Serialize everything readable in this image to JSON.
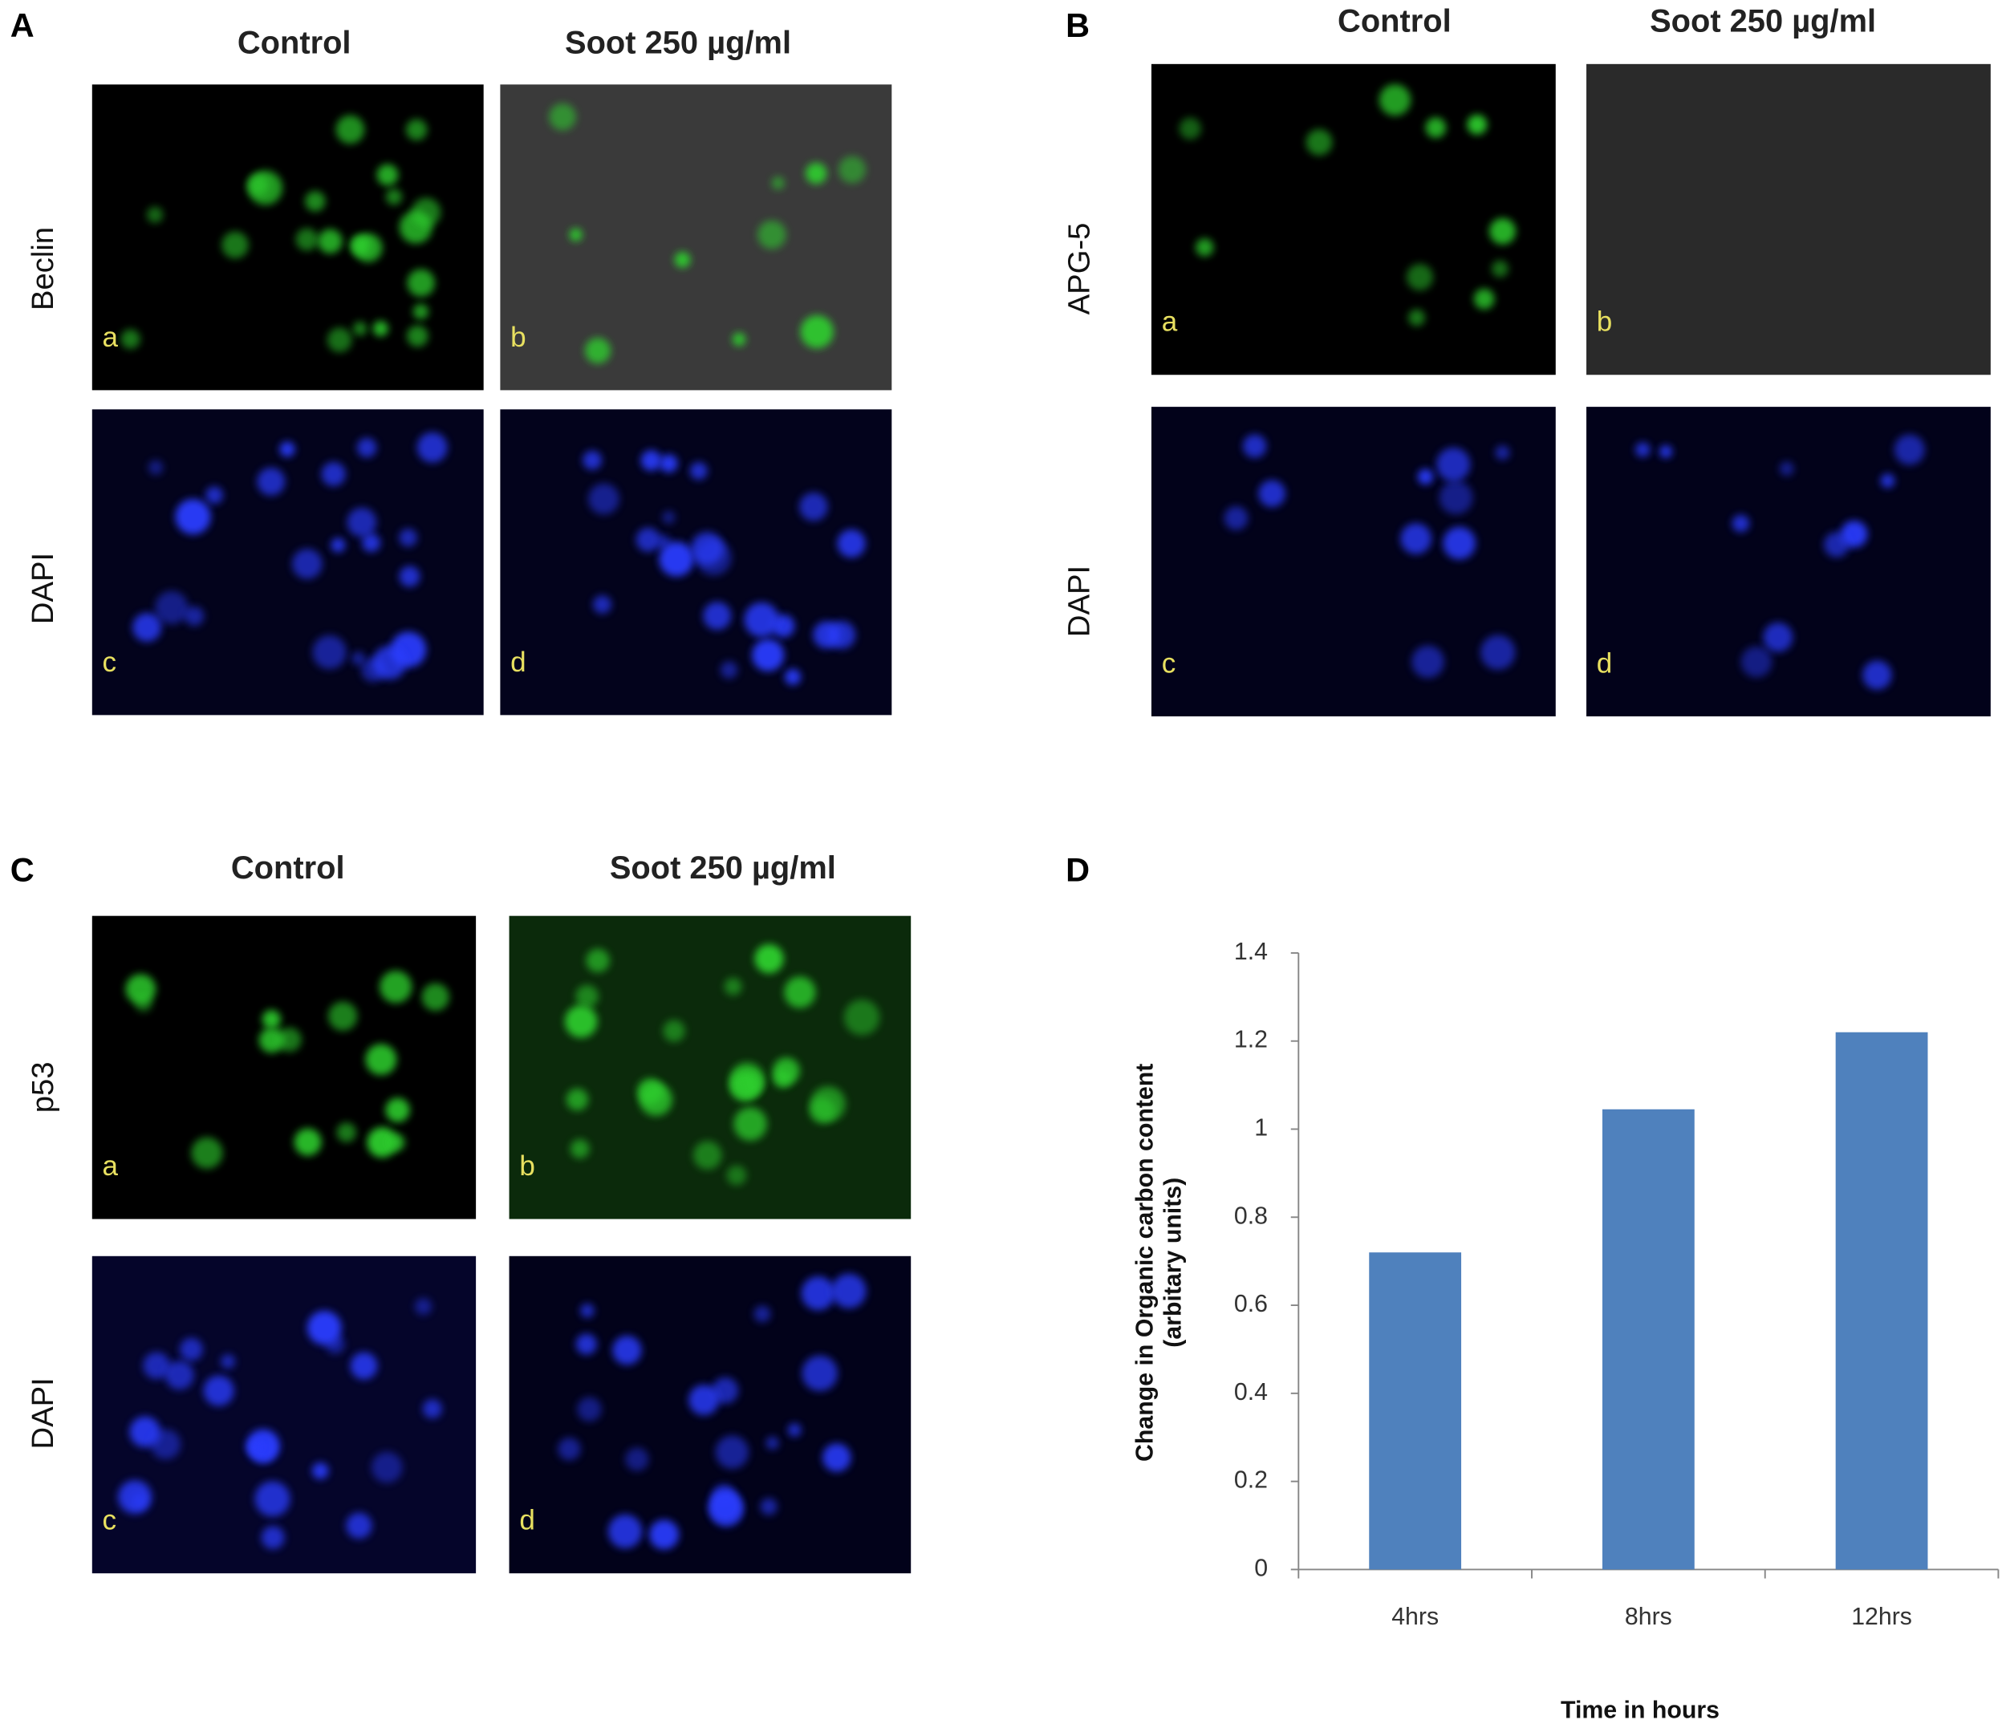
{
  "panels": [
    {
      "label": "A",
      "columns": [
        "Control",
        "Soot 250  µg/ml"
      ],
      "rows": [
        {
          "label": "Beclin",
          "images": [
            "a",
            "b"
          ]
        },
        {
          "label": "DAPI",
          "images": [
            "c",
            "d"
          ]
        }
      ]
    },
    {
      "label": "B",
      "columns": [
        "Control",
        "Soot 250  µg/ml"
      ],
      "rows": [
        {
          "label": "APG-5",
          "images": [
            "a",
            "b"
          ]
        },
        {
          "label": "DAPI",
          "images": [
            "c",
            "d"
          ]
        }
      ]
    },
    {
      "label": "C",
      "columns": [
        "Control",
        "Soot 250  µg/ml"
      ],
      "rows": [
        {
          "label": "p53",
          "images": [
            "a",
            "b"
          ]
        },
        {
          "label": "DAPI",
          "images": [
            "c",
            "d"
          ]
        }
      ]
    }
  ],
  "chart_data": {
    "type": "bar",
    "panel_label": "D",
    "categories": [
      "4hrs",
      "8hrs",
      "12hrs"
    ],
    "values": [
      0.72,
      1.045,
      1.22
    ],
    "color": "#4f81bd",
    "ylim": [
      0,
      1.4
    ],
    "yticks": [
      0,
      0.2,
      0.4,
      0.6,
      0.8,
      1,
      1.2,
      1.4
    ],
    "xlabel": "Time in hours",
    "ylabel": [
      "Change  in Organic carbon content",
      "(arbitary units)"
    ]
  }
}
